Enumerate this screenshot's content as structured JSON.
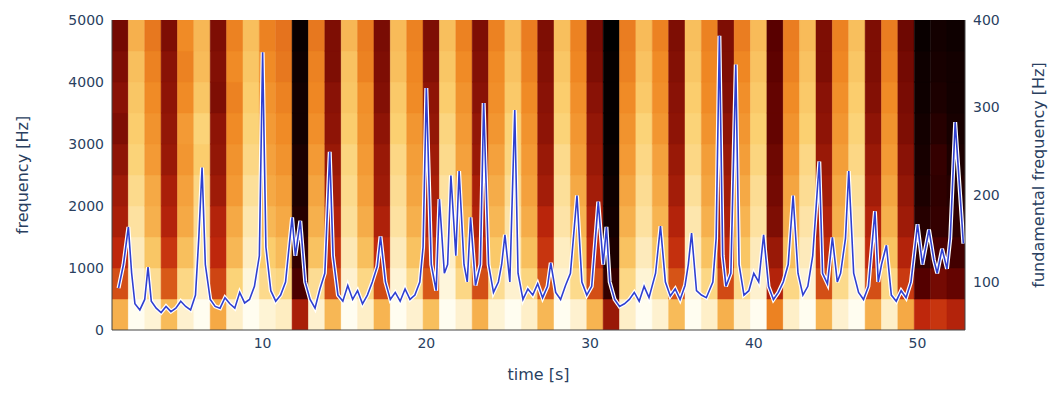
{
  "chart_data": {
    "type": "line",
    "x_label": "time [s]",
    "y_label": "frequency [Hz]",
    "y2_label": "fundamental frequency [Hz]",
    "xlim": [
      0.8,
      52.9
    ],
    "xticks": [
      10,
      20,
      30,
      40,
      50
    ],
    "ylim": [
      0,
      5000
    ],
    "yticks": [
      0,
      1000,
      2000,
      3000,
      4000,
      5000
    ],
    "y2lim": [
      45,
      400
    ],
    "y2ticks": [
      100,
      200,
      300,
      400
    ],
    "grid": false,
    "x": [
      1.2,
      1.5,
      1.8,
      2.0,
      2.2,
      2.5,
      2.8,
      3.0,
      3.2,
      3.5,
      3.8,
      4.1,
      4.4,
      4.7,
      5.0,
      5.3,
      5.6,
      5.9,
      6.1,
      6.3,
      6.5,
      6.8,
      7.1,
      7.4,
      7.7,
      8.0,
      8.3,
      8.6,
      8.9,
      9.2,
      9.5,
      9.8,
      10.0,
      10.2,
      10.5,
      10.8,
      11.1,
      11.4,
      11.8,
      12.0,
      12.3,
      12.6,
      12.9,
      13.2,
      13.5,
      13.8,
      14.1,
      14.3,
      14.6,
      14.9,
      15.2,
      15.5,
      15.8,
      16.1,
      16.4,
      16.7,
      17.0,
      17.2,
      17.5,
      17.8,
      18.1,
      18.4,
      18.7,
      19.0,
      19.3,
      19.6,
      19.8,
      20.0,
      20.3,
      20.6,
      20.8,
      21.1,
      21.3,
      21.5,
      21.8,
      22.0,
      22.3,
      22.5,
      22.7,
      23.0,
      23.3,
      23.5,
      23.8,
      24.1,
      24.4,
      24.6,
      24.8,
      25.1,
      25.4,
      25.6,
      25.9,
      26.2,
      26.5,
      26.8,
      27.1,
      27.4,
      27.6,
      27.9,
      28.2,
      28.5,
      28.8,
      29.2,
      29.5,
      29.8,
      30.1,
      30.5,
      30.8,
      31.0,
      31.2,
      31.5,
      31.8,
      32.1,
      32.4,
      32.7,
      33.0,
      33.3,
      33.6,
      34.0,
      34.3,
      34.6,
      34.9,
      35.2,
      35.5,
      35.8,
      36.0,
      36.2,
      36.5,
      36.8,
      37.1,
      37.5,
      37.7,
      37.9,
      38.1,
      38.3,
      38.6,
      38.9,
      39.1,
      39.4,
      39.7,
      40.0,
      40.3,
      40.6,
      40.9,
      41.2,
      41.5,
      41.8,
      42.1,
      42.4,
      42.7,
      43.0,
      43.3,
      43.6,
      44.0,
      44.2,
      44.5,
      44.8,
      45.1,
      45.3,
      45.6,
      45.8,
      46.1,
      46.4,
      46.7,
      47.0,
      47.4,
      47.6,
      47.8,
      48.1,
      48.4,
      48.7,
      49.0,
      49.3,
      49.6,
      50.0,
      50.3,
      50.7,
      51.0,
      51.2,
      51.5,
      51.8,
      52.0,
      52.3,
      52.6,
      52.8
    ],
    "series": [
      {
        "color": "#3040d0",
        "axis": "y2",
        "marker": "none",
        "line_style": "solid",
        "values": [
          93,
          120,
          163,
          110,
          75,
          68,
          80,
          117,
          78,
          70,
          65,
          72,
          66,
          70,
          78,
          72,
          68,
          85,
          150,
          231,
          120,
          80,
          72,
          70,
          82,
          75,
          70,
          88,
          76,
          80,
          95,
          130,
          363,
          140,
          90,
          78,
          85,
          100,
          174,
          130,
          170,
          100,
          80,
          70,
          92,
          110,
          249,
          130,
          85,
          78,
          96,
          80,
          90,
          75,
          85,
          100,
          118,
          152,
          100,
          80,
          88,
          78,
          92,
          80,
          85,
          100,
          140,
          322,
          120,
          90,
          195,
          110,
          120,
          222,
          130,
          227,
          120,
          100,
          174,
          96,
          120,
          305,
          120,
          88,
          100,
          120,
          154,
          100,
          297,
          110,
          80,
          92,
          85,
          98,
          82,
          95,
          122,
          88,
          80,
          96,
          110,
          199,
          100,
          85,
          95,
          192,
          120,
          163,
          100,
          80,
          72,
          75,
          80,
          88,
          78,
          95,
          82,
          110,
          164,
          100,
          84,
          92,
          80,
          96,
          120,
          156,
          90,
          85,
          82,
          100,
          150,
          382,
          130,
          95,
          110,
          349,
          120,
          85,
          90,
          110,
          100,
          154,
          95,
          80,
          88,
          100,
          120,
          199,
          110,
          85,
          95,
          130,
          238,
          110,
          98,
          151,
          100,
          110,
          150,
          227,
          110,
          88,
          80,
          95,
          181,
          100,
          120,
          142,
          85,
          78,
          90,
          82,
          100,
          166,
          120,
          160,
          125,
          110,
          138,
          115,
          150,
          283,
          200,
          144
        ]
      }
    ],
    "heatmap": {
      "x_edges": [
        0.8,
        1.8,
        2.8,
        3.8,
        4.8,
        5.8,
        6.8,
        7.8,
        8.8,
        9.8,
        10.8,
        11.8,
        12.8,
        13.8,
        14.8,
        15.8,
        16.8,
        17.8,
        18.8,
        19.8,
        20.8,
        21.8,
        22.8,
        23.8,
        24.8,
        25.8,
        26.8,
        27.8,
        28.8,
        29.8,
        30.8,
        31.8,
        32.8,
        33.8,
        34.8,
        35.8,
        36.8,
        37.8,
        38.8,
        39.8,
        40.8,
        41.8,
        42.8,
        43.8,
        44.8,
        45.8,
        46.8,
        47.8,
        48.8,
        49.8,
        50.8,
        51.8,
        52.9
      ],
      "y_edges": [
        0,
        500,
        1000,
        1500,
        2000,
        2500,
        3000,
        3500,
        4000,
        4500,
        5000
      ],
      "cells": [
        [
          0.72,
          0.5,
          0.42,
          0.38,
          0.36,
          0.33,
          0.3,
          0.32,
          0.3,
          0.28
        ],
        [
          1.0,
          0.96,
          0.92,
          0.88,
          0.85,
          0.82,
          0.8,
          0.78,
          0.76,
          0.72
        ],
        [
          0.96,
          0.86,
          0.78,
          0.72,
          0.7,
          0.66,
          0.64,
          0.62,
          0.6,
          0.58
        ],
        [
          0.75,
          0.52,
          0.45,
          0.4,
          0.38,
          0.35,
          0.34,
          0.33,
          0.32,
          0.3
        ],
        [
          0.95,
          0.84,
          0.76,
          0.7,
          0.68,
          0.65,
          0.66,
          0.62,
          0.6,
          0.62
        ],
        [
          1.0,
          0.94,
          0.9,
          0.86,
          0.84,
          0.8,
          0.82,
          0.78,
          0.75,
          0.74
        ],
        [
          0.7,
          0.48,
          0.42,
          0.4,
          0.36,
          0.34,
          0.33,
          0.3,
          0.31,
          0.3
        ],
        [
          0.94,
          0.82,
          0.74,
          0.7,
          0.66,
          0.64,
          0.62,
          0.6,
          0.62,
          0.6
        ],
        [
          1.0,
          0.97,
          0.93,
          0.9,
          0.87,
          0.84,
          0.82,
          0.8,
          0.78,
          0.76
        ],
        [
          0.96,
          0.85,
          0.8,
          0.74,
          0.7,
          0.68,
          0.66,
          0.64,
          0.62,
          0.6
        ],
        [
          0.93,
          0.83,
          0.75,
          0.7,
          0.67,
          0.64,
          0.62,
          0.6,
          0.58,
          0.57
        ],
        [
          0.38,
          0.2,
          0.15,
          0.12,
          0.1,
          0.1,
          0.08,
          0.08,
          0.07,
          0.06
        ],
        [
          0.95,
          0.86,
          0.77,
          0.72,
          0.69,
          0.66,
          0.63,
          0.61,
          0.6,
          0.58
        ],
        [
          0.74,
          0.5,
          0.44,
          0.4,
          0.37,
          0.35,
          0.33,
          0.32,
          0.3,
          0.3
        ],
        [
          1.0,
          0.95,
          0.91,
          0.87,
          0.85,
          0.83,
          0.8,
          0.78,
          0.77,
          0.74
        ],
        [
          0.94,
          0.84,
          0.76,
          0.71,
          0.68,
          0.66,
          0.64,
          0.63,
          0.6,
          0.59
        ],
        [
          0.73,
          0.49,
          0.43,
          0.39,
          0.36,
          0.35,
          0.33,
          0.31,
          0.3,
          0.29
        ],
        [
          1.0,
          0.96,
          0.92,
          0.88,
          0.86,
          0.84,
          0.81,
          0.79,
          0.76,
          0.75
        ],
        [
          0.95,
          0.85,
          0.77,
          0.72,
          0.69,
          0.67,
          0.65,
          0.62,
          0.61,
          0.6
        ],
        [
          0.76,
          0.52,
          0.46,
          0.41,
          0.38,
          0.36,
          0.34,
          0.33,
          0.31,
          0.3
        ],
        [
          1.0,
          0.97,
          0.94,
          0.9,
          0.88,
          0.85,
          0.83,
          0.8,
          0.78,
          0.76
        ],
        [
          0.95,
          0.84,
          0.78,
          0.73,
          0.7,
          0.68,
          0.66,
          0.64,
          0.62,
          0.6
        ],
        [
          0.72,
          0.5,
          0.44,
          0.4,
          0.38,
          0.35,
          0.34,
          0.32,
          0.31,
          0.3
        ],
        [
          0.96,
          0.86,
          0.79,
          0.74,
          0.71,
          0.68,
          0.65,
          0.63,
          0.62,
          0.6
        ],
        [
          1.0,
          0.95,
          0.92,
          0.89,
          0.86,
          0.83,
          0.82,
          0.79,
          0.77,
          0.75
        ],
        [
          0.94,
          0.83,
          0.76,
          0.71,
          0.68,
          0.66,
          0.64,
          0.62,
          0.6,
          0.59
        ],
        [
          0.74,
          0.51,
          0.45,
          0.41,
          0.37,
          0.35,
          0.33,
          0.32,
          0.31,
          0.3
        ],
        [
          1.0,
          0.96,
          0.93,
          0.89,
          0.87,
          0.85,
          0.82,
          0.8,
          0.78,
          0.76
        ],
        [
          0.95,
          0.85,
          0.78,
          0.73,
          0.7,
          0.67,
          0.65,
          0.63,
          0.61,
          0.6
        ],
        [
          0.73,
          0.5,
          0.43,
          0.4,
          0.37,
          0.35,
          0.34,
          0.32,
          0.3,
          0.29
        ],
        [
          0.35,
          0.15,
          0.1,
          0.08,
          0.07,
          0.06,
          0.05,
          0.05,
          0.05,
          0.04
        ],
        [
          0.94,
          0.84,
          0.77,
          0.72,
          0.69,
          0.66,
          0.64,
          0.62,
          0.6,
          0.59
        ],
        [
          1.0,
          0.96,
          0.92,
          0.88,
          0.86,
          0.84,
          0.82,
          0.79,
          0.77,
          0.75
        ],
        [
          0.95,
          0.86,
          0.78,
          0.73,
          0.7,
          0.68,
          0.65,
          0.63,
          0.62,
          0.6
        ],
        [
          0.75,
          0.51,
          0.44,
          0.4,
          0.37,
          0.35,
          0.33,
          0.32,
          0.31,
          0.3
        ],
        [
          1.0,
          0.97,
          0.93,
          0.9,
          0.87,
          0.84,
          0.82,
          0.8,
          0.78,
          0.76
        ],
        [
          0.94,
          0.84,
          0.77,
          0.72,
          0.69,
          0.67,
          0.64,
          0.62,
          0.61,
          0.6
        ],
        [
          0.72,
          0.49,
          0.43,
          0.39,
          0.37,
          0.35,
          0.33,
          0.31,
          0.3,
          0.3
        ],
        [
          0.95,
          0.85,
          0.78,
          0.73,
          0.7,
          0.67,
          0.65,
          0.63,
          0.61,
          0.59
        ],
        [
          1.0,
          0.95,
          0.92,
          0.88,
          0.86,
          0.83,
          0.81,
          0.79,
          0.77,
          0.75
        ],
        [
          0.6,
          0.4,
          0.35,
          0.3,
          0.28,
          0.27,
          0.25,
          0.25,
          0.24,
          0.23
        ],
        [
          0.94,
          0.84,
          0.76,
          0.71,
          0.69,
          0.66,
          0.64,
          0.62,
          0.6,
          0.59
        ],
        [
          1.0,
          0.96,
          0.92,
          0.89,
          0.86,
          0.84,
          0.81,
          0.79,
          0.77,
          0.75
        ],
        [
          0.73,
          0.5,
          0.44,
          0.4,
          0.37,
          0.35,
          0.33,
          0.32,
          0.3,
          0.3
        ],
        [
          0.95,
          0.85,
          0.77,
          0.72,
          0.7,
          0.67,
          0.65,
          0.63,
          0.61,
          0.6
        ],
        [
          1.0,
          0.96,
          0.93,
          0.89,
          0.87,
          0.84,
          0.82,
          0.8,
          0.78,
          0.76
        ],
        [
          0.72,
          0.5,
          0.43,
          0.4,
          0.37,
          0.35,
          0.33,
          0.31,
          0.3,
          0.3
        ],
        [
          0.94,
          0.84,
          0.77,
          0.72,
          0.69,
          0.66,
          0.64,
          0.62,
          0.6,
          0.59
        ],
        [
          0.7,
          0.46,
          0.4,
          0.36,
          0.34,
          0.32,
          0.3,
          0.29,
          0.28,
          0.27
        ],
        [
          0.42,
          0.22,
          0.15,
          0.12,
          0.1,
          0.09,
          0.08,
          0.07,
          0.07,
          0.06
        ],
        [
          0.45,
          0.28,
          0.2,
          0.15,
          0.14,
          0.15,
          0.12,
          0.1,
          0.09,
          0.08
        ],
        [
          0.4,
          0.25,
          0.18,
          0.14,
          0.12,
          0.1,
          0.09,
          0.08,
          0.08,
          0.07
        ]
      ]
    }
  }
}
